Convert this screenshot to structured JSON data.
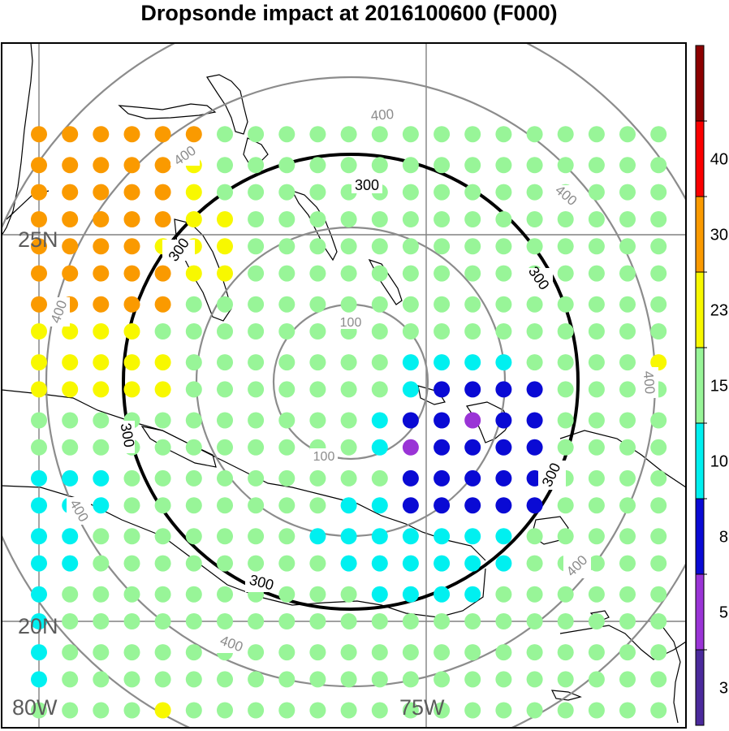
{
  "title": "Dropsonde impact at 2016100600 (F000)",
  "lat_labels": [
    "25N",
    "20N"
  ],
  "lon_labels": [
    "80W",
    "75W"
  ],
  "range_ring_labels": {
    "r100": "100",
    "r300": "300",
    "r400": "400"
  },
  "colorbar": {
    "tick_labels": [
      "3",
      "5",
      "8",
      "10",
      "15",
      "23",
      "30",
      "40"
    ],
    "colors": [
      "#4b2a9c",
      "#9a34d6",
      "#0a0ad4",
      "#00f0f0",
      "#98f598",
      "#f8f800",
      "#fa9a00",
      "#fa0000",
      "#8c0000"
    ]
  },
  "map_colors": {
    "grid": "#808080",
    "rings": "#8c8c8c",
    "ring300": "#000000",
    "coast": "#000000"
  },
  "impact_grid": {
    "lon_columns": [
      -80.0,
      -79.6,
      -79.2,
      -78.8,
      -78.4,
      -78.0,
      -77.6,
      -77.2,
      -76.8,
      -76.4,
      -76.0,
      -75.6,
      -75.2,
      -74.8,
      -74.4,
      -74.0,
      -73.6,
      -73.2,
      -72.8,
      -72.4,
      -72.0
    ],
    "lat_rows": [
      26.3,
      25.9,
      25.55,
      25.2,
      24.85,
      24.5,
      24.1,
      23.75,
      23.35,
      23.0,
      22.6,
      22.25,
      21.85,
      21.5,
      21.1,
      20.75,
      20.35,
      20.0,
      19.6,
      19.25,
      18.85
    ],
    "category_codes": [
      "666666444444444444444",
      "666665444444444444444",
      "666665444444444444444",
      "666665544444444444444",
      "666655544444444444444",
      "666665544444444444444",
      "666664444444444444444",
      "555544444444444444444",
      "555554444444333344445",
      "555554444444322224444",
      "444444444443221224444",
      "444444444443122224444",
      "333444444444222224444",
      "333444444433222224444",
      "334444444333333344444",
      "334444444433333344444",
      "344444444443333444444",
      "344444444444444444444",
      "344444444444444444444",
      "344444444444444444444",
      "444454444444444444444"
    ]
  }
}
